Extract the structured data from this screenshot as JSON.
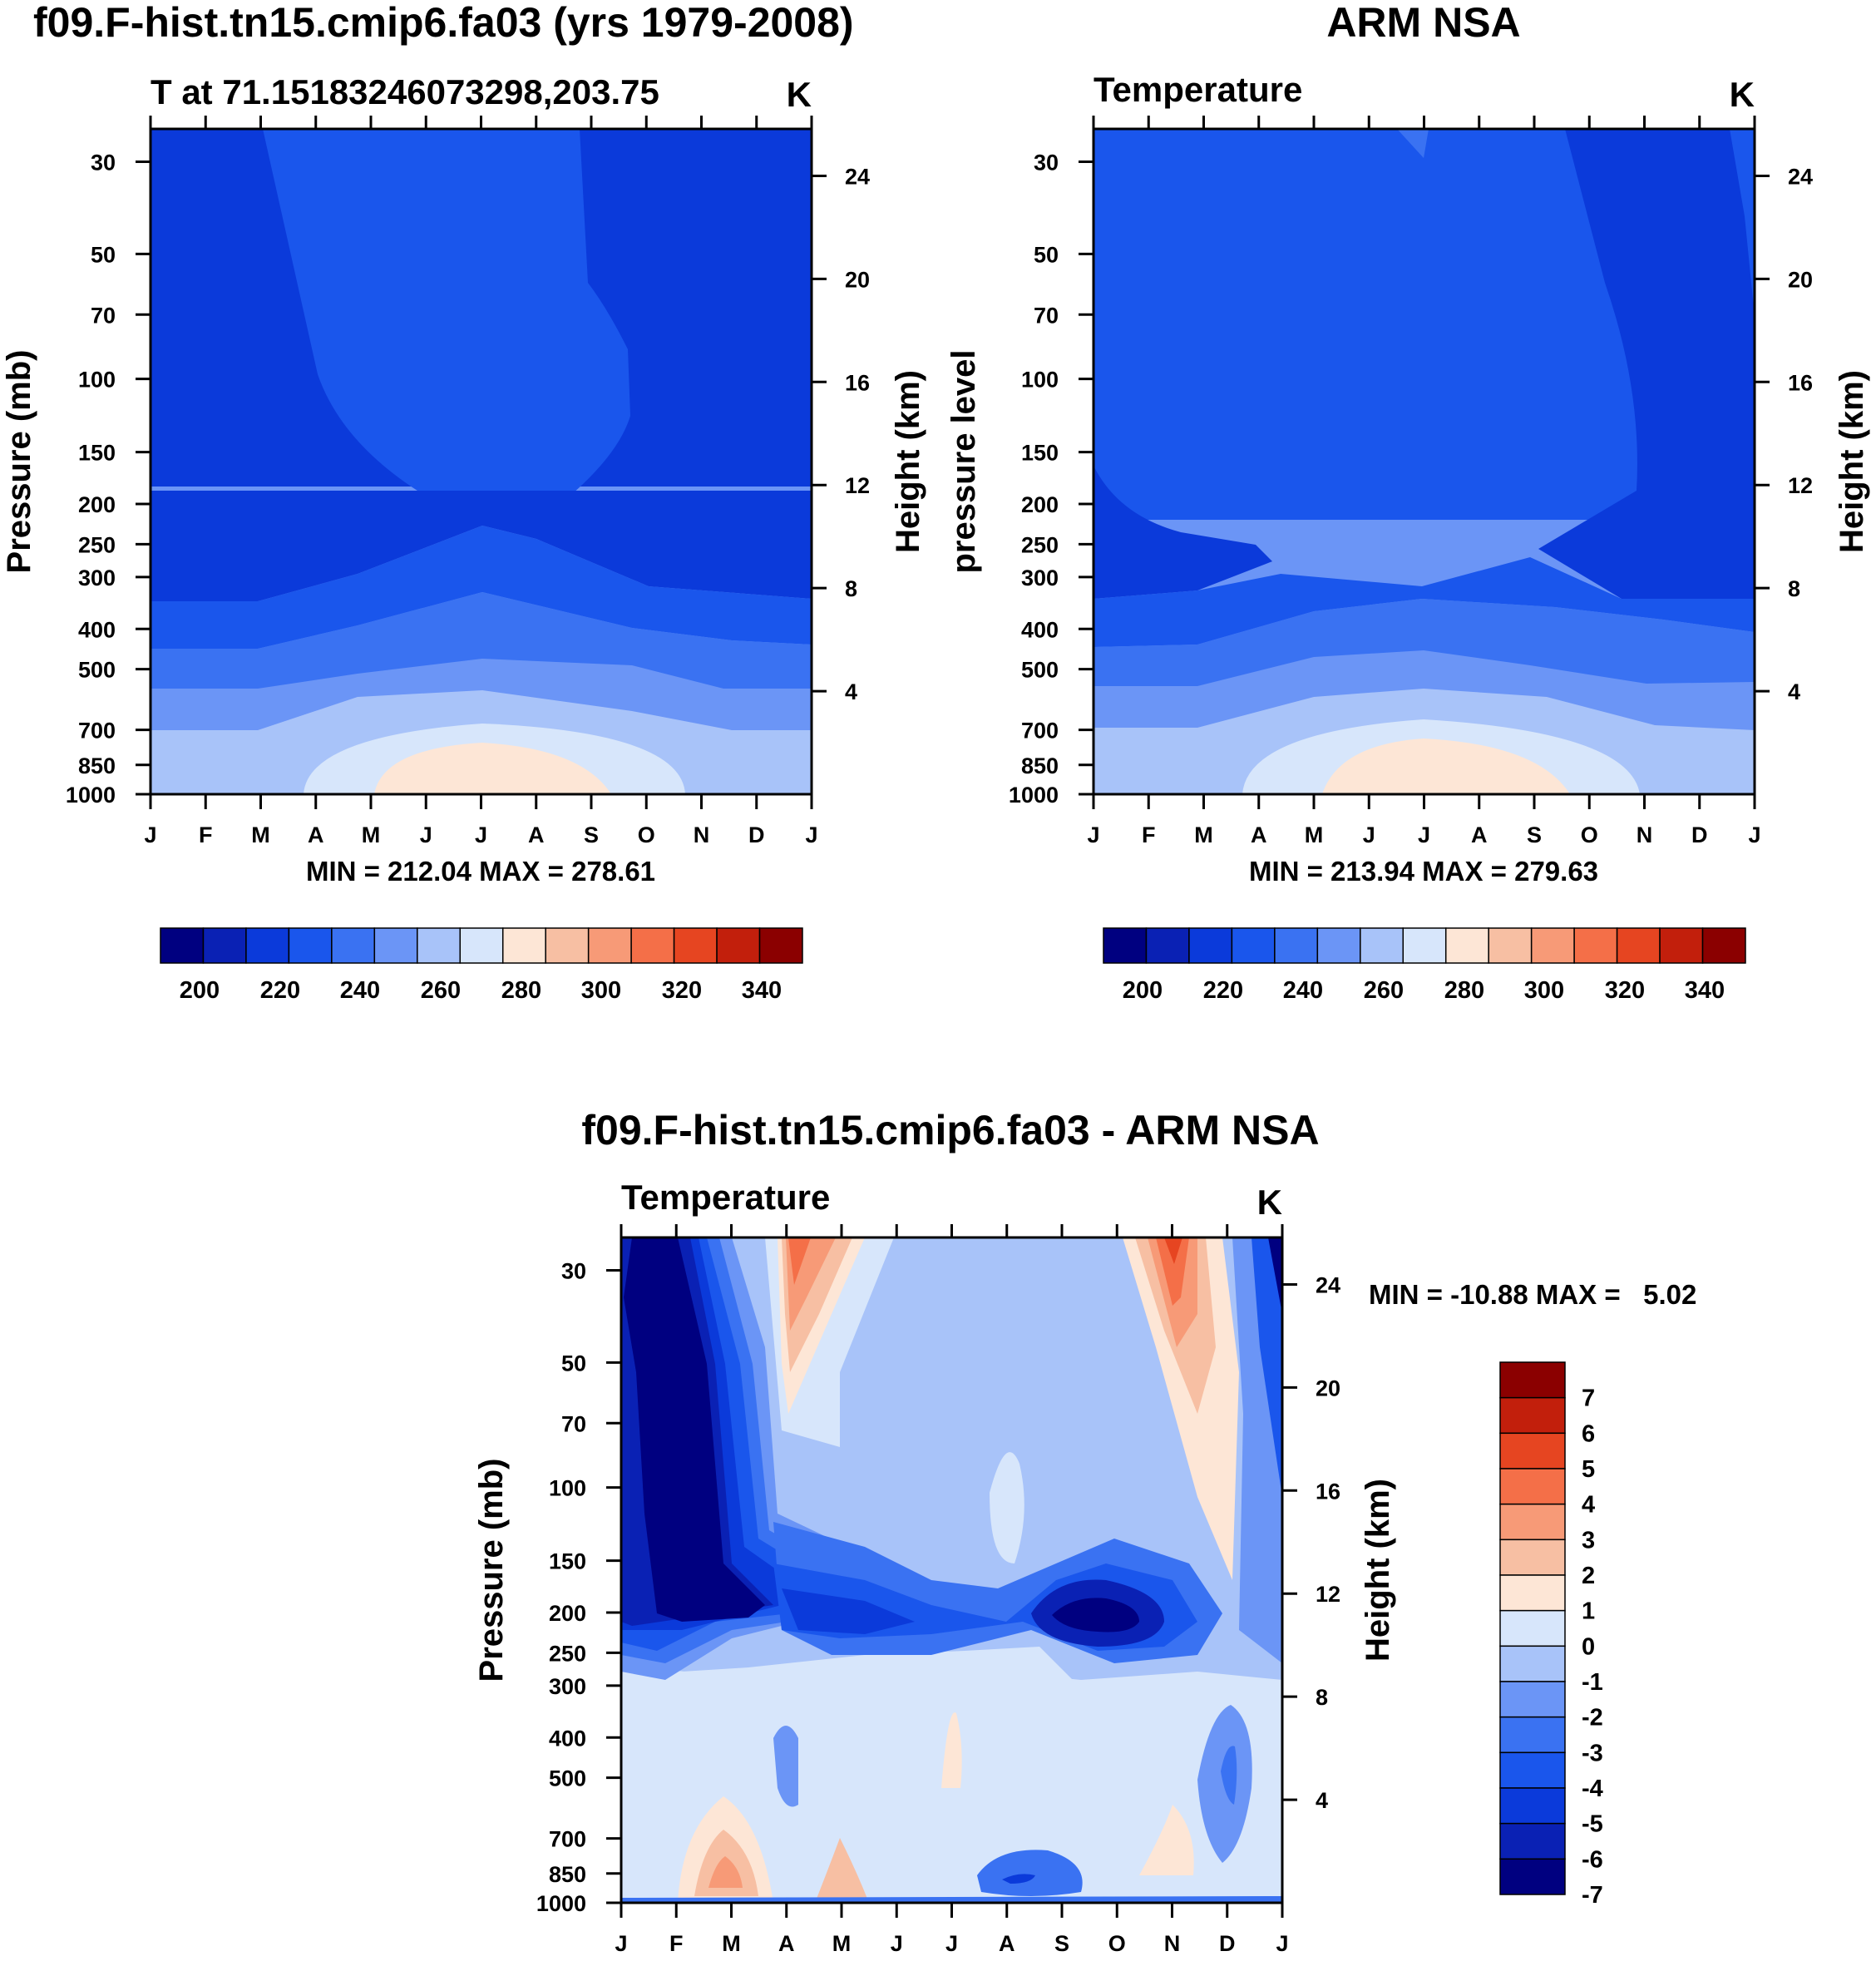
{
  "colors": {
    "temperature_scale": [
      "#000080",
      "#0a21b4",
      "#0b3ada",
      "#1a56ec",
      "#3a72f2",
      "#6b95f6",
      "#a8c3f9",
      "#d7e6fb",
      "#fde6d6",
      "#f7bfa3",
      "#f79a77",
      "#f46f48",
      "#e64521",
      "#c21f0c",
      "#8b0000"
    ],
    "difference_scale": [
      "#000080",
      "#0a21b4",
      "#0b3ada",
      "#1a56ec",
      "#3a72f2",
      "#6b95f6",
      "#a8c3f9",
      "#d7e6fb",
      "#fde6d6",
      "#f7bfa3",
      "#f79a77",
      "#f46f48",
      "#e64521",
      "#c21f0c",
      "#8b0000"
    ]
  },
  "chart_data": [
    {
      "type": "heatmap",
      "panel": "model",
      "title": "f09.F-hist.tn15.cmip6.fa03 (yrs 1979-2008)",
      "subtitle_left": "T at 71.15183246073298,203.75",
      "subtitle_right": "K",
      "xlabel": "",
      "ylabel": "Pressure (mb)",
      "ylabel_right": "Height (km)",
      "x_ticks": [
        "J",
        "F",
        "M",
        "A",
        "M",
        "J",
        "J",
        "A",
        "S",
        "O",
        "N",
        "D",
        "J"
      ],
      "y_ticks": [
        30,
        50,
        70,
        100,
        150,
        200,
        250,
        300,
        400,
        500,
        700,
        850,
        1000
      ],
      "y_right_ticks": [
        24,
        20,
        16,
        12,
        8,
        4
      ],
      "ylim": [
        1000,
        25
      ],
      "stats": "MIN = 212.04 MAX = 278.61",
      "min": 212.04,
      "max": 278.61,
      "colorbar_labels": [
        200,
        220,
        240,
        260,
        280,
        300,
        320,
        340
      ],
      "contour_levels": [
        195,
        200,
        205,
        210,
        215,
        220,
        225,
        230,
        235,
        240,
        245,
        250,
        255,
        260,
        265,
        270,
        275,
        280,
        285,
        290,
        295,
        300,
        305,
        310,
        315,
        320,
        325,
        330,
        335,
        340,
        345
      ],
      "contour_bands": [
        {
          "level": "<215",
          "description": "stratosphere Jan-Feb and Sep-Dec"
        },
        {
          "level": "215-220",
          "description": "stratosphere Mar-Aug"
        },
        {
          "level": "220-225",
          "description": "300-400 mb"
        },
        {
          "level": "225-235",
          "description": "400-500 mb"
        },
        {
          "level": "235-250",
          "description": "500-700 mb"
        },
        {
          "level": "250-265",
          "description": "700-850 mb"
        },
        {
          "level": "265-275",
          "description": "near surface Apr-Oct"
        },
        {
          "level": ">275",
          "description": "near surface Jun-Aug"
        }
      ]
    },
    {
      "type": "heatmap",
      "panel": "observation",
      "title": "ARM NSA",
      "subtitle_left": "Temperature",
      "subtitle_right": "K",
      "xlabel": "",
      "ylabel": "pressure level",
      "ylabel_right": "Height (km)",
      "x_ticks": [
        "J",
        "F",
        "M",
        "A",
        "M",
        "J",
        "J",
        "A",
        "S",
        "O",
        "N",
        "D",
        "J"
      ],
      "y_ticks": [
        30,
        50,
        70,
        100,
        150,
        200,
        250,
        300,
        400,
        500,
        700,
        850,
        1000
      ],
      "y_right_ticks": [
        24,
        20,
        16,
        12,
        8,
        4
      ],
      "ylim": [
        1000,
        25
      ],
      "stats": "MIN = 213.94 MAX = 279.63",
      "min": 213.94,
      "max": 279.63,
      "colorbar_labels": [
        200,
        220,
        240,
        260,
        280,
        300,
        320,
        340
      ]
    },
    {
      "type": "heatmap",
      "panel": "difference",
      "title": "f09.F-hist.tn15.cmip6.fa03 - ARM NSA",
      "subtitle_left": "Temperature",
      "subtitle_right": "K",
      "xlabel": "",
      "ylabel": "Pressure (mb)",
      "ylabel_right": "Height (km)",
      "x_ticks": [
        "J",
        "F",
        "M",
        "A",
        "M",
        "J",
        "J",
        "A",
        "S",
        "O",
        "N",
        "D",
        "J"
      ],
      "y_ticks": [
        30,
        50,
        70,
        100,
        150,
        200,
        250,
        300,
        400,
        500,
        700,
        850,
        1000
      ],
      "y_right_ticks": [
        24,
        20,
        16,
        12,
        8,
        4
      ],
      "ylim": [
        1000,
        25
      ],
      "stats": "MIN = -10.88 MAX =   5.02",
      "min": -10.88,
      "max": 5.02,
      "colorbar_labels": [
        7,
        6,
        5,
        4,
        3,
        2,
        1,
        0,
        -1,
        -2,
        -3,
        -4,
        -5,
        -6,
        -7
      ],
      "contour_levels": [
        -7,
        -6,
        -5,
        -4,
        -3,
        -2,
        -1,
        0,
        1,
        2,
        3,
        4,
        5,
        6,
        7
      ],
      "features": [
        {
          "where": "Jan-Mar, 25-250 mb",
          "value": "<-7"
        },
        {
          "where": "Apr-May, 25-50 mb",
          "value": "2 to 4"
        },
        {
          "where": "Nov, 25-100 mb",
          "value": "2 to 5"
        },
        {
          "where": "Sep-Oct, 200 mb",
          "value": "-6 to -8"
        },
        {
          "where": "Mar, 700-850 mb",
          "value": "1 to 3"
        },
        {
          "where": "Aug, 850 mb",
          "value": "-4 to -6"
        }
      ]
    }
  ]
}
